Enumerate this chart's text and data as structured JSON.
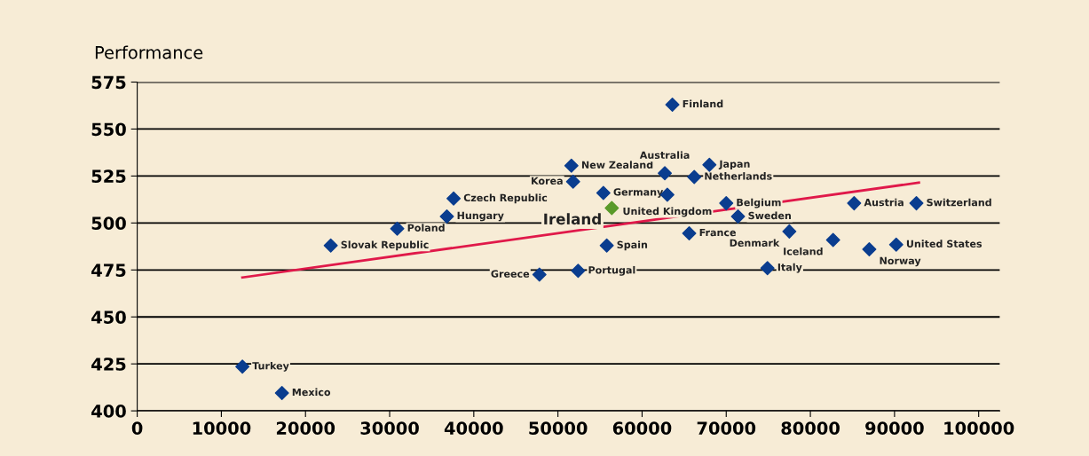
{
  "chart_data": {
    "type": "scatter",
    "ylabel": "Performance",
    "xlim": [
      0,
      102500
    ],
    "ylim": [
      400,
      575
    ],
    "xticks": [
      0,
      10000,
      20000,
      30000,
      40000,
      50000,
      60000,
      70000,
      80000,
      90000,
      100000
    ],
    "yticks": [
      400,
      425,
      450,
      475,
      500,
      525,
      550,
      575
    ],
    "grid": "y",
    "marker": "diamond",
    "series": [
      {
        "color": "#0a3d8f",
        "x": [
          12500,
          17200,
          23000,
          30900,
          37600,
          36800,
          47800,
          52400,
          51600,
          51800,
          55400,
          55800,
          62700,
          63000,
          66200,
          68000,
          65600,
          70000,
          71400,
          77500,
          74900,
          82700,
          85200,
          87000,
          90200,
          92600,
          63600
        ],
        "values": [
          423.5,
          409.5,
          488,
          497,
          513,
          503.5,
          472.5,
          474.5,
          530.5,
          522,
          516,
          488,
          526.5,
          515,
          524.5,
          531,
          494.5,
          510.5,
          503.5,
          495.5,
          476,
          491,
          510.5,
          486,
          488.5,
          510.5,
          563
        ]
      },
      {
        "color": "#5a9a2a",
        "x": [
          56400
        ],
        "values": [
          508
        ]
      },
      {
        "type": "line",
        "color": "#e0194a",
        "x": [
          12500,
          92900
        ],
        "values": [
          471,
          521.5
        ],
        "marker": "none"
      }
    ],
    "annotations": [
      {
        "text": "Turkey",
        "x": 12500,
        "y": 423.5
      },
      {
        "text": "Mexico",
        "x": 17200,
        "y": 409.5
      },
      {
        "text": "Slovak Republic",
        "x": 23000,
        "y": 488
      },
      {
        "text": "Poland",
        "x": 30900,
        "y": 497
      },
      {
        "text": "Czech Republic",
        "x": 37600,
        "y": 513
      },
      {
        "text": "Hungary",
        "x": 36800,
        "y": 503.5
      },
      {
        "text": "Greece",
        "x": 47800,
        "y": 472.5
      },
      {
        "text": "Portugal",
        "x": 52400,
        "y": 474.5
      },
      {
        "text": "New Zealand",
        "x": 51600,
        "y": 530.5
      },
      {
        "text": "Korea",
        "x": 51800,
        "y": 522
      },
      {
        "text": "Germany",
        "x": 55400,
        "y": 516
      },
      {
        "text": "Spain",
        "x": 55800,
        "y": 488
      },
      {
        "text": "Australia",
        "x": 62700,
        "y": 526.5
      },
      {
        "text": "United Kingdom",
        "x": 63000,
        "y": 515
      },
      {
        "text": "Netherlands",
        "x": 66200,
        "y": 524.5
      },
      {
        "text": "Japan",
        "x": 68000,
        "y": 531
      },
      {
        "text": "France",
        "x": 65600,
        "y": 494.5
      },
      {
        "text": "Belgium",
        "x": 70000,
        "y": 510.5
      },
      {
        "text": "Sweden",
        "x": 71400,
        "y": 503.5
      },
      {
        "text": "Denmark",
        "x": 77500,
        "y": 495.5
      },
      {
        "text": "Italy",
        "x": 74900,
        "y": 476
      },
      {
        "text": "Iceland",
        "x": 82700,
        "y": 491
      },
      {
        "text": "Austria",
        "x": 85200,
        "y": 510.5
      },
      {
        "text": "Norway",
        "x": 87000,
        "y": 486
      },
      {
        "text": "United States",
        "x": 90200,
        "y": 488.5
      },
      {
        "text": "Switzerland",
        "x": 92600,
        "y": 510.5
      },
      {
        "text": "Finland",
        "x": 63600,
        "y": 563
      },
      {
        "text": "Ireland",
        "x": 56400,
        "y": 508
      }
    ]
  }
}
